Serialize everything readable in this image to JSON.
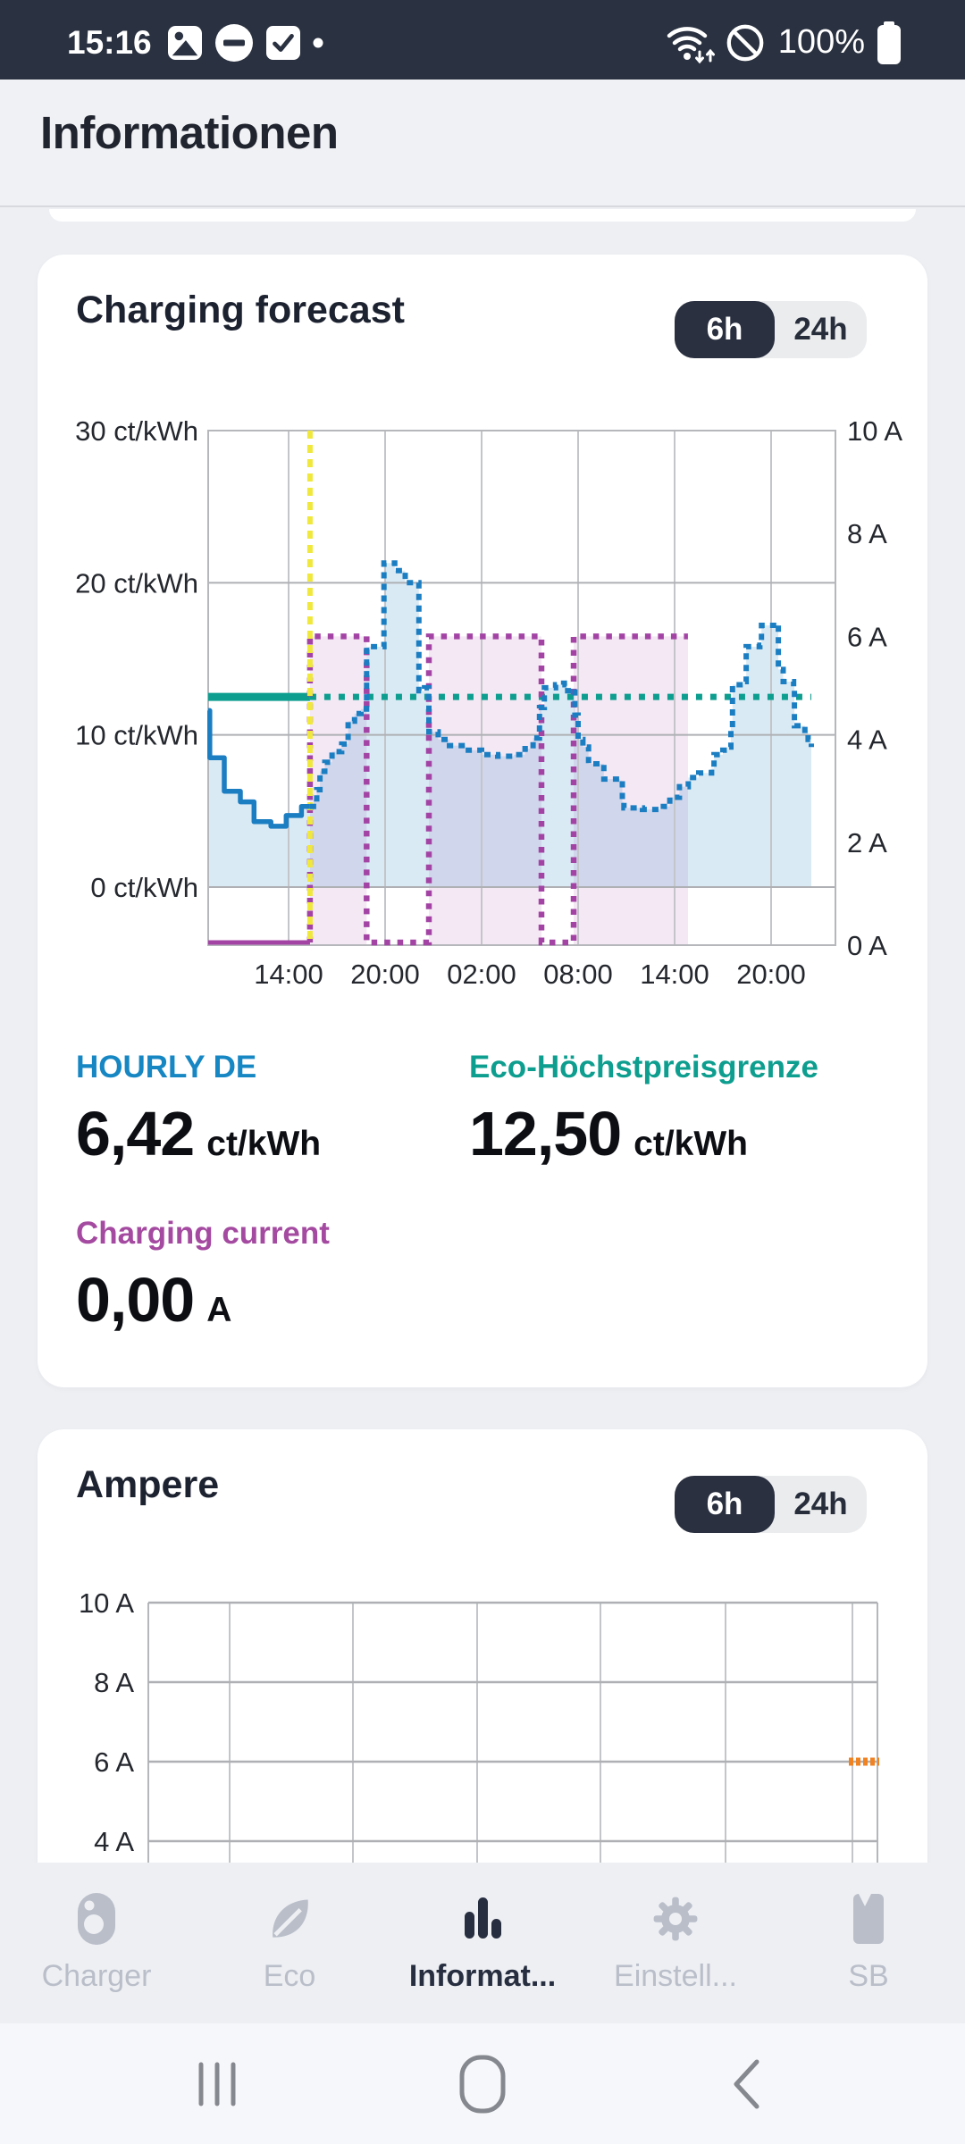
{
  "status_bar": {
    "time": "15:16",
    "battery_percent": "100%",
    "left_icons": [
      "image-notification-icon",
      "do-not-disturb-icon",
      "checkbox-notification-icon",
      "notification-dot"
    ],
    "right_icons": [
      "wifi-network-icon",
      "no-sim-icon",
      "battery-icon"
    ]
  },
  "header": {
    "title": "Informationen"
  },
  "cards": [
    {
      "title": "Charging forecast",
      "toggle": {
        "options": [
          "6h",
          "24h"
        ],
        "active": "6h"
      },
      "stats": [
        {
          "label": "HOURLY DE",
          "value": "6,42",
          "unit": "ct/kWh",
          "color": "#1787c4"
        },
        {
          "label": "Eco-Höchstpreisgrenze",
          "value": "12,50",
          "unit": "ct/kWh",
          "color": "#0d9e8f"
        },
        {
          "label": "Charging current",
          "value": "0,00",
          "unit": "A",
          "color": "#a44aa0"
        }
      ]
    },
    {
      "title": "Ampere",
      "toggle": {
        "options": [
          "6h",
          "24h"
        ],
        "active": "6h"
      }
    }
  ],
  "chart_data": [
    {
      "type": "line",
      "title": "Charging forecast",
      "x_axis": {
        "note": "hours are decimal hours since midnight of day 1; plot spans 09:00 day1 to 24:00 day2",
        "range_hours": [
          9,
          48
        ],
        "ticks": [
          [
            14,
            "14:00"
          ],
          [
            20,
            "20:00"
          ],
          [
            26,
            "02:00"
          ],
          [
            32,
            "08:00"
          ],
          [
            38,
            "14:00"
          ],
          [
            44,
            "20:00"
          ]
        ]
      },
      "y_left": {
        "unit": "ct/kWh",
        "ticks": [
          [
            30,
            "30 ct/kWh"
          ],
          [
            20,
            "20 ct/kWh"
          ],
          [
            10,
            "10 ct/kWh"
          ],
          [
            0,
            "0 ct/kWh"
          ]
        ],
        "top_value": 30
      },
      "y_right": {
        "unit": "A",
        "ticks": [
          [
            10,
            "10 A"
          ],
          [
            8,
            "8 A"
          ],
          [
            6,
            "6 A"
          ],
          [
            4,
            "4 A"
          ],
          [
            2,
            "2 A"
          ],
          [
            0,
            "0 A"
          ]
        ],
        "range": [
          0,
          10
        ]
      },
      "now_line": {
        "hour": 15.33,
        "color": "#f0e83c",
        "style": "dashed vertical"
      },
      "series": [
        {
          "name": "HOURLY DE price",
          "axis": "left",
          "color": "#1b7ec2",
          "fill": "rgba(27,126,194,0.16)",
          "style": "step line, solid before now, dotted after now, area filled down to 0 ct/kWh",
          "points_history": [
            [
              9.0,
              11.6
            ],
            [
              9.1,
              8.5
            ],
            [
              10.0,
              6.3
            ],
            [
              11.0,
              5.6
            ],
            [
              11.85,
              4.3
            ],
            [
              12.9,
              4.0
            ],
            [
              13.85,
              4.7
            ],
            [
              14.8,
              5.3
            ]
          ],
          "points_forecast": [
            [
              15.33,
              5.3
            ],
            [
              15.55,
              5.8
            ],
            [
              15.75,
              6.4
            ],
            [
              15.95,
              7.6
            ],
            [
              16.25,
              8.2
            ],
            [
              16.7,
              8.9
            ],
            [
              17.3,
              9.4
            ],
            [
              17.7,
              10.9
            ],
            [
              18.1,
              11.4
            ],
            [
              18.5,
              11.7
            ],
            [
              18.85,
              15.8
            ],
            [
              19.93,
              21.3
            ],
            [
              20.6,
              20.8
            ],
            [
              21.25,
              20.0
            ],
            [
              22.1,
              12.9
            ],
            [
              22.45,
              13.1
            ],
            [
              22.72,
              10.2
            ],
            [
              23.3,
              9.7
            ],
            [
              24.0,
              9.3
            ],
            [
              25.0,
              9.0
            ],
            [
              26.0,
              8.7
            ],
            [
              27.0,
              8.6
            ],
            [
              28.0,
              8.7
            ],
            [
              28.7,
              9.1
            ],
            [
              29.2,
              9.8
            ],
            [
              29.6,
              11.8
            ],
            [
              29.9,
              13.1
            ],
            [
              30.6,
              13.3
            ],
            [
              31.1,
              13.4
            ],
            [
              31.35,
              12.9
            ],
            [
              31.6,
              13.0
            ],
            [
              31.8,
              11.3
            ],
            [
              32.0,
              9.7
            ],
            [
              32.3,
              9.2
            ],
            [
              32.65,
              8.1
            ],
            [
              33.6,
              7.1
            ],
            [
              34.6,
              7.0
            ],
            [
              34.75,
              5.6
            ],
            [
              34.85,
              5.2
            ],
            [
              36.0,
              5.1
            ],
            [
              37.3,
              5.3
            ],
            [
              37.7,
              5.9
            ],
            [
              38.3,
              6.6
            ],
            [
              38.85,
              7.2
            ],
            [
              39.5,
              7.5
            ],
            [
              40.3,
              7.8
            ],
            [
              40.45,
              8.7
            ],
            [
              41.0,
              9.0
            ],
            [
              41.3,
              9.2
            ],
            [
              41.5,
              10.5
            ],
            [
              41.6,
              13.3
            ],
            [
              42.3,
              13.5
            ],
            [
              42.45,
              15.8
            ],
            [
              43.3,
              15.9
            ],
            [
              43.4,
              17.2
            ],
            [
              44.4,
              17.3
            ],
            [
              44.45,
              14.3
            ],
            [
              44.75,
              13.5
            ],
            [
              45.4,
              13.2
            ],
            [
              45.45,
              10.6
            ],
            [
              46.1,
              10.3
            ],
            [
              46.3,
              9.7
            ],
            [
              46.5,
              9.2
            ]
          ]
        },
        {
          "name": "Eco-Höchstpreisgrenze",
          "axis": "left",
          "color": "#0d9e8f",
          "style": "horizontal line, solid before now, dotted after now",
          "value": 12.5,
          "end_hour": 46.5
        },
        {
          "name": "Charging current forecast",
          "axis": "right",
          "color": "#a344a5",
          "fill": "rgba(163,68,165,0.12)",
          "style": "step line, solid 0 A history before now, dotted forecast after now, 6 A blocks filled to x-axis",
          "points_history": [
            [
              9.0,
              0
            ],
            [
              15.33,
              0
            ]
          ],
          "blocks_6A": [
            [
              15.33,
              18.85
            ],
            [
              22.72,
              29.72
            ],
            [
              31.72,
              38.83
            ]
          ]
        }
      ]
    },
    {
      "type": "line",
      "title": "Ampere",
      "y_axis": {
        "unit": "A",
        "ticks_visible": [
          [
            10,
            "10 A"
          ],
          [
            8,
            "8 A"
          ],
          [
            6,
            "6 A"
          ],
          [
            4,
            "4 A"
          ]
        ]
      },
      "x_axis": {
        "span_hours": 6,
        "labels_visible": false
      },
      "series": [
        {
          "name": "charging current",
          "color": "#f08222",
          "value_A": 6,
          "note": "short dashed orange segment at 6 A at the right edge of the 6 h window"
        }
      ]
    }
  ],
  "bottom_nav": [
    {
      "label": "Charger",
      "icon": "charger-icon",
      "active": false
    },
    {
      "label": "Eco",
      "icon": "eco-leaf-icon",
      "active": false
    },
    {
      "label": "Informat...",
      "icon": "bar-chart-icon",
      "active": true
    },
    {
      "label": "Einstell...",
      "icon": "gear-icon",
      "active": false
    },
    {
      "label": "SB",
      "icon": "bookmark-icon",
      "active": false
    }
  ],
  "gesture_bar": [
    "recents-icon",
    "home-icon",
    "back-icon"
  ]
}
